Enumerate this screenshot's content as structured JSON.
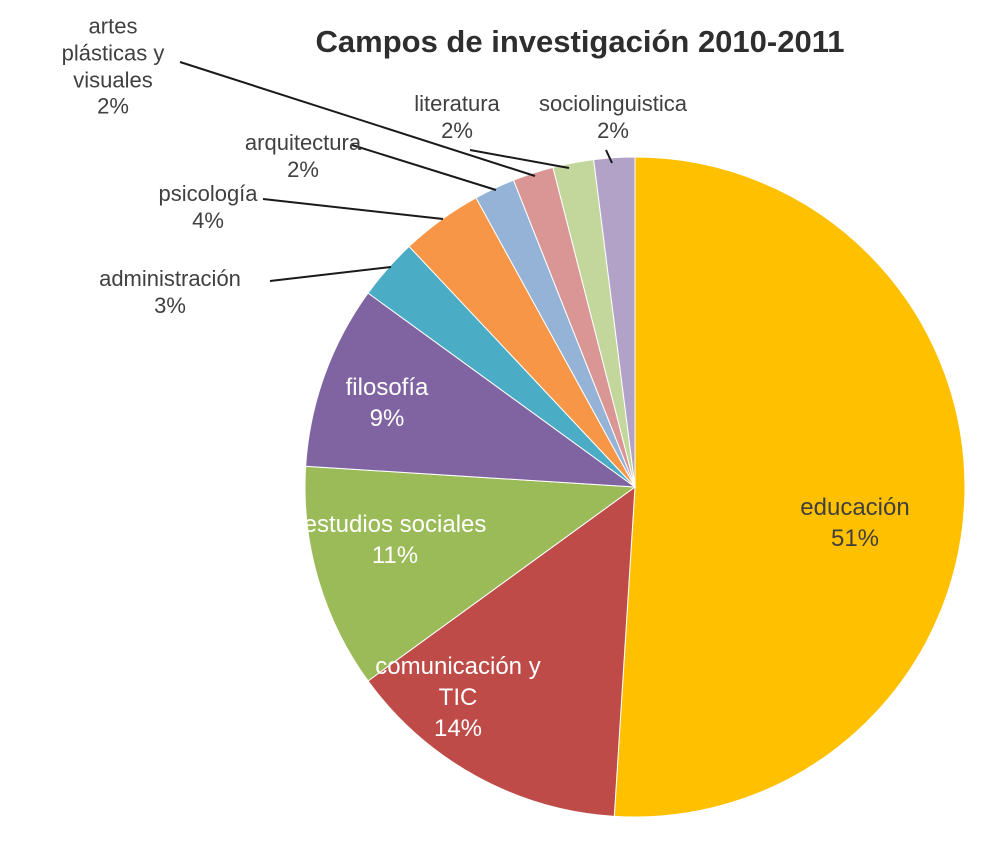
{
  "title": "Campos de investigación 2010-2011",
  "chart_data": {
    "type": "pie",
    "title": "Campos de investigación 2010-2011",
    "start_angle_deg": 0,
    "direction": "clockwise",
    "total": 100,
    "legend": "none",
    "background": "#ffffff",
    "slices": [
      {
        "label": "educación",
        "value": 51,
        "pct": "51%",
        "color": "#FFC000",
        "label_style": "inside-dark"
      },
      {
        "label": "comunicación y TIC",
        "value": 14,
        "pct": "14%",
        "color": "#BE4B48",
        "label_style": "inside-white"
      },
      {
        "label": "estudios sociales",
        "value": 11,
        "pct": "11%",
        "color": "#9BBB59",
        "label_style": "inside-white"
      },
      {
        "label": "filosofía",
        "value": 9,
        "pct": "9%",
        "color": "#8064A2",
        "label_style": "inside-white"
      },
      {
        "label": "administración",
        "value": 3,
        "pct": "3%",
        "color": "#4BACC6",
        "label_style": "outside"
      },
      {
        "label": "psicología",
        "value": 4,
        "pct": "4%",
        "color": "#F79646",
        "label_style": "outside"
      },
      {
        "label": "arquitectura",
        "value": 2,
        "pct": "2%",
        "color": "#95B3D7",
        "label_style": "outside"
      },
      {
        "label": "artes plásticas y visuales",
        "value": 2,
        "pct": "2%",
        "color": "#D99694",
        "label_style": "outside"
      },
      {
        "label": "literatura",
        "value": 2,
        "pct": "2%",
        "color": "#C3D69B",
        "label_style": "outside"
      },
      {
        "label": "sociolinguistica",
        "value": 2,
        "pct": "2%",
        "color": "#B2A2C7",
        "label_style": "outside"
      }
    ]
  }
}
